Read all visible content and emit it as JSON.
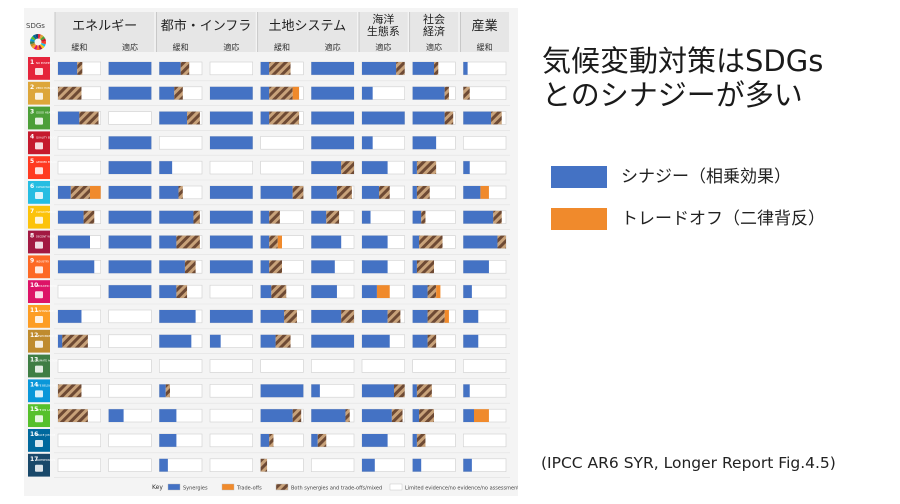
{
  "title_lines": [
    "気候変動対策はSDGs",
    "とのシナジーが多い"
  ],
  "legend": [
    {
      "label": "シナジー（相乗効果）",
      "color": "#4472c4"
    },
    {
      "label": "トレードオフ（二律背反）",
      "color": "#f08a2c"
    }
  ],
  "source": "(IPCC AR6 SYR, Longer Report Fig.4.5)",
  "chart_data": {
    "type": "table",
    "sdgs_label": "SDGs",
    "groups": [
      {
        "name": [
          "エネルギー"
        ],
        "cols": [
          "緩和",
          "適応"
        ]
      },
      {
        "name": [
          "都市・インフラ"
        ],
        "cols": [
          "緩和",
          "適応"
        ]
      },
      {
        "name": [
          "土地システム"
        ],
        "cols": [
          "緩和",
          "適応"
        ]
      },
      {
        "name": [
          "海洋",
          "生態系"
        ],
        "cols": [
          "適応"
        ]
      },
      {
        "name": [
          "社会",
          "経済"
        ],
        "cols": [
          "適応"
        ]
      },
      {
        "name": [
          "産業"
        ],
        "cols": [
          "緩和"
        ]
      }
    ],
    "sdg_colors": [
      "#e5243b",
      "#dda63a",
      "#4c9f38",
      "#c5192d",
      "#ff3a21",
      "#26bde2",
      "#fcc30b",
      "#a21942",
      "#fd6925",
      "#dd1367",
      "#fd9d24",
      "#bf8b2e",
      "#3f7e44",
      "#0a97d9",
      "#56c02b",
      "#00689d",
      "#19486a"
    ],
    "sdg_names": [
      "NO POVERTY",
      "ZERO HUNGER",
      "GOOD HEALTH",
      "QUALITY EDUCATION",
      "GENDER EQUALITY",
      "CLEAN WATER",
      "CLEAN ENERGY",
      "DECENT WORK",
      "INDUSTRY",
      "REDUCED INEQUALITIES",
      "SUSTAINABLE CITIES",
      "RESPONSIBLE CONSUMPTION",
      "CLIMATE ACTION",
      "LIFE BELOW WATER",
      "LIFE ON LAND",
      "PEACE JUSTICE",
      "PARTNERSHIPS"
    ],
    "key": {
      "label": "Key",
      "items": [
        {
          "label": "Synergies",
          "kind": "syn"
        },
        {
          "label": "Trade-offs",
          "kind": "trade"
        },
        {
          "label": "Both synergies and trade-offs/mixed",
          "kind": "mix"
        },
        {
          "label": "Limited evidence/no evidence/no assessment",
          "kind": "none"
        }
      ]
    },
    "cells": [
      [
        [
          [
            "syn",
            0.45
          ],
          [
            "mix",
            0.12
          ]
        ],
        [
          [
            "syn",
            1.0
          ]
        ],
        [
          [
            "syn",
            0.5
          ],
          [
            "mix",
            0.2
          ]
        ],
        [],
        [
          [
            "syn",
            0.2
          ],
          [
            "mix",
            0.5
          ]
        ],
        [
          [
            "syn",
            1.0
          ]
        ],
        [
          [
            "syn",
            0.8
          ],
          [
            "mix",
            0.2
          ]
        ],
        [
          [
            "syn",
            0.5
          ],
          [
            "mix",
            0.1
          ]
        ],
        [
          [
            "syn",
            0.1
          ]
        ]
      ],
      [
        [
          [
            "mix",
            0.55
          ]
        ],
        [
          [
            "syn",
            1.0
          ]
        ],
        [
          [
            "syn",
            0.35
          ],
          [
            "mix",
            0.2
          ]
        ],
        [
          [
            "syn",
            1.0
          ]
        ],
        [
          [
            "syn",
            0.2
          ],
          [
            "mix",
            0.55
          ],
          [
            "trade",
            0.15
          ]
        ],
        [
          [
            "syn",
            1.0
          ]
        ],
        [
          [
            "syn",
            0.25
          ]
        ],
        [
          [
            "syn",
            0.75
          ],
          [
            "mix",
            0.1
          ]
        ],
        [
          [
            "mix",
            0.15
          ]
        ]
      ],
      [
        [
          [
            "syn",
            0.5
          ],
          [
            "mix",
            0.45
          ]
        ],
        [],
        [
          [
            "syn",
            0.65
          ],
          [
            "mix",
            0.3
          ]
        ],
        [
          [
            "syn",
            1.0
          ]
        ],
        [
          [
            "syn",
            0.2
          ],
          [
            "mix",
            0.7
          ]
        ],
        [
          [
            "syn",
            1.0
          ]
        ],
        [
          [
            "syn",
            1.0
          ]
        ],
        [
          [
            "syn",
            0.75
          ],
          [
            "mix",
            0.2
          ]
        ],
        [
          [
            "syn",
            0.65
          ],
          [
            "mix",
            0.25
          ]
        ]
      ],
      [
        [],
        [
          [
            "syn",
            1.0
          ]
        ],
        [],
        [
          [
            "syn",
            1.0
          ]
        ],
        [],
        [
          [
            "syn",
            1.0
          ]
        ],
        [
          [
            "syn",
            0.25
          ]
        ],
        [
          [
            "syn",
            0.55
          ]
        ],
        []
      ],
      [
        [],
        [
          [
            "syn",
            1.0
          ]
        ],
        [
          [
            "syn",
            0.3
          ]
        ],
        [],
        [],
        [
          [
            "syn",
            0.7
          ],
          [
            "mix",
            0.3
          ]
        ],
        [
          [
            "syn",
            0.6
          ]
        ],
        [
          [
            "syn",
            0.1
          ],
          [
            "mix",
            0.45
          ]
        ],
        [
          [
            "syn",
            0.15
          ]
        ]
      ],
      [
        [
          [
            "syn",
            0.3
          ],
          [
            "mix",
            0.45
          ],
          [
            "trade",
            0.25
          ]
        ],
        [
          [
            "syn",
            1.0
          ]
        ],
        [
          [
            "syn",
            0.45
          ],
          [
            "mix",
            0.1
          ]
        ],
        [
          [
            "syn",
            1.0
          ]
        ],
        [
          [
            "syn",
            0.75
          ],
          [
            "mix",
            0.25
          ]
        ],
        [
          [
            "syn",
            0.6
          ],
          [
            "mix",
            0.35
          ]
        ],
        [
          [
            "syn",
            0.4
          ],
          [
            "mix",
            0.25
          ]
        ],
        [
          [
            "syn",
            0.1
          ],
          [
            "mix",
            0.3
          ]
        ],
        [
          [
            "syn",
            0.4
          ],
          [
            "trade",
            0.2
          ]
        ]
      ],
      [
        [
          [
            "syn",
            0.6
          ],
          [
            "mix",
            0.25
          ]
        ],
        [
          [
            "syn",
            1.0
          ]
        ],
        [
          [
            "syn",
            0.8
          ],
          [
            "mix",
            0.15
          ]
        ],
        [
          [
            "syn",
            1.0
          ]
        ],
        [
          [
            "syn",
            0.2
          ],
          [
            "mix",
            0.25
          ]
        ],
        [
          [
            "syn",
            0.35
          ],
          [
            "mix",
            0.3
          ]
        ],
        [
          [
            "syn",
            0.2
          ]
        ],
        [
          [
            "syn",
            0.2
          ],
          [
            "mix",
            0.1
          ]
        ],
        [
          [
            "syn",
            0.7
          ],
          [
            "mix",
            0.2
          ]
        ]
      ],
      [
        [
          [
            "syn",
            0.75
          ]
        ],
        [
          [
            "syn",
            1.0
          ]
        ],
        [
          [
            "syn",
            0.4
          ],
          [
            "mix",
            0.55
          ]
        ],
        [
          [
            "syn",
            1.0
          ]
        ],
        [
          [
            "syn",
            0.2
          ],
          [
            "mix",
            0.2
          ],
          [
            "trade",
            0.1
          ]
        ],
        [
          [
            "syn",
            0.7
          ]
        ],
        [
          [
            "syn",
            0.6
          ]
        ],
        [
          [
            "syn",
            0.15
          ],
          [
            "mix",
            0.55
          ]
        ],
        [
          [
            "syn",
            0.8
          ],
          [
            "mix",
            0.2
          ]
        ]
      ],
      [
        [
          [
            "syn",
            0.85
          ]
        ],
        [
          [
            "syn",
            1.0
          ]
        ],
        [
          [
            "syn",
            0.6
          ],
          [
            "mix",
            0.25
          ]
        ],
        [
          [
            "syn",
            1.0
          ]
        ],
        [
          [
            "syn",
            0.2
          ],
          [
            "mix",
            0.3
          ]
        ],
        [
          [
            "syn",
            0.55
          ]
        ],
        [
          [
            "syn",
            0.6
          ]
        ],
        [
          [
            "syn",
            0.1
          ],
          [
            "mix",
            0.4
          ]
        ],
        [
          [
            "syn",
            0.6
          ]
        ]
      ],
      [
        [],
        [
          [
            "syn",
            1.0
          ]
        ],
        [
          [
            "syn",
            0.4
          ],
          [
            "mix",
            0.25
          ]
        ],
        [],
        [
          [
            "syn",
            0.25
          ],
          [
            "mix",
            0.35
          ]
        ],
        [
          [
            "syn",
            0.6
          ]
        ],
        [
          [
            "syn",
            0.35
          ],
          [
            "trade",
            0.3
          ]
        ],
        [
          [
            "syn",
            0.35
          ],
          [
            "mix",
            0.2
          ],
          [
            "trade",
            0.1
          ]
        ],
        [
          [
            "syn",
            0.2
          ]
        ]
      ],
      [
        [
          [
            "syn",
            0.55
          ]
        ],
        [],
        [
          [
            "syn",
            0.85
          ]
        ],
        [
          [
            "syn",
            1.0
          ]
        ],
        [
          [
            "syn",
            0.55
          ],
          [
            "mix",
            0.3
          ]
        ],
        [
          [
            "syn",
            0.7
          ],
          [
            "mix",
            0.3
          ]
        ],
        [
          [
            "syn",
            0.6
          ],
          [
            "mix",
            0.3
          ]
        ],
        [
          [
            "syn",
            0.35
          ],
          [
            "mix",
            0.4
          ],
          [
            "trade",
            0.1
          ]
        ],
        [
          [
            "syn",
            0.35
          ]
        ]
      ],
      [
        [
          [
            "syn",
            0.1
          ],
          [
            "mix",
            0.6
          ]
        ],
        [],
        [
          [
            "syn",
            0.75
          ]
        ],
        [
          [
            "syn",
            0.25
          ]
        ],
        [
          [
            "syn",
            0.35
          ],
          [
            "mix",
            0.35
          ]
        ],
        [
          [
            "syn",
            1.0
          ]
        ],
        [
          [
            "syn",
            0.65
          ]
        ],
        [
          [
            "syn",
            0.35
          ],
          [
            "mix",
            0.2
          ]
        ],
        [
          [
            "syn",
            0.35
          ]
        ]
      ],
      [
        [],
        [],
        [],
        [],
        [],
        [],
        [],
        [],
        []
      ],
      [
        [
          [
            "mix",
            0.55
          ]
        ],
        [],
        [
          [
            "syn",
            0.15
          ],
          [
            "mix",
            0.1
          ]
        ],
        [],
        [
          [
            "syn",
            1.0
          ]
        ],
        [
          [
            "syn",
            0.2
          ]
        ],
        [
          [
            "syn",
            0.75
          ],
          [
            "mix",
            0.25
          ]
        ],
        [
          [
            "syn",
            0.1
          ],
          [
            "mix",
            0.35
          ]
        ],
        [
          [
            "syn",
            0.15
          ]
        ]
      ],
      [
        [
          [
            "mix",
            0.7
          ]
        ],
        [
          [
            "syn",
            0.35
          ]
        ],
        [
          [
            "syn",
            0.4
          ]
        ],
        [],
        [
          [
            "syn",
            0.75
          ],
          [
            "mix",
            0.2
          ]
        ],
        [
          [
            "syn",
            0.8
          ],
          [
            "mix",
            0.1
          ]
        ],
        [
          [
            "syn",
            0.7
          ],
          [
            "mix",
            0.25
          ]
        ],
        [
          [
            "syn",
            0.15
          ],
          [
            "mix",
            0.35
          ]
        ],
        [
          [
            "syn",
            0.25
          ],
          [
            "trade",
            0.35
          ]
        ]
      ],
      [
        [],
        [],
        [
          [
            "syn",
            0.4
          ]
        ],
        [],
        [
          [
            "syn",
            0.2
          ],
          [
            "mix",
            0.1
          ]
        ],
        [
          [
            "syn",
            0.15
          ],
          [
            "mix",
            0.2
          ]
        ],
        [
          [
            "syn",
            0.6
          ]
        ],
        [
          [
            "syn",
            0.1
          ],
          [
            "mix",
            0.2
          ]
        ],
        []
      ],
      [
        [],
        [],
        [
          [
            "syn",
            0.2
          ]
        ],
        [],
        [
          [
            "mix",
            0.15
          ]
        ],
        [],
        [
          [
            "syn",
            0.3
          ]
        ],
        [
          [
            "syn",
            0.2
          ]
        ],
        [
          [
            "syn",
            0.2
          ]
        ]
      ]
    ]
  }
}
